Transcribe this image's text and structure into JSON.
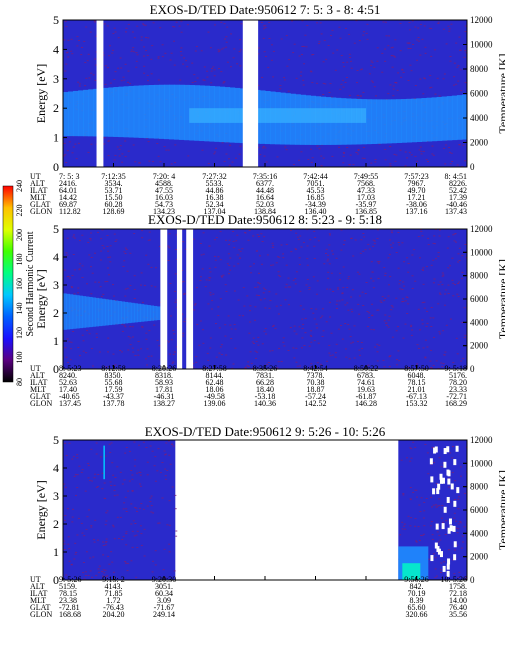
{
  "chart_data": [
    {
      "type": "heatmap",
      "title": "EXOS-D/TED   Date:950612  7: 5: 3 - 8: 4:51",
      "ylabel": "Energy [eV]",
      "y2label": "Temperature [K]",
      "ylim": [
        0,
        5
      ],
      "y2lim": [
        0,
        12000
      ],
      "yticks": [
        "0",
        "1",
        "2",
        "3",
        "4",
        "5"
      ],
      "y2ticks": [
        "0",
        "2000",
        "4000",
        "6000",
        "8000",
        "10000",
        "12000"
      ],
      "data_gaps": [
        [
          0.083,
          0.1
        ],
        [
          0.445,
          0.483
        ]
      ],
      "rows": [
        {
          "label": "UT",
          "values": [
            "7: 5: 3",
            "7:12:35",
            "7:20: 4",
            "7:27:32",
            "7:35:16",
            "7:42:44",
            "7:49:55",
            "7:57:23",
            "8: 4:51"
          ]
        },
        {
          "label": "ALT",
          "values": [
            "2416.",
            "3534.",
            "4588.",
            "5533.",
            "6377.",
            "7051.",
            "7568.",
            "7967.",
            "8226."
          ]
        },
        {
          "label": "ILAT",
          "values": [
            "64.01",
            "53.71",
            "47.55",
            "44.86",
            "44.48",
            "45.53",
            "47.33",
            "49.70",
            "52.42"
          ]
        },
        {
          "label": "MLT",
          "values": [
            "14.42",
            "15.50",
            "16.03",
            "16.38",
            "16.64",
            "16.85",
            "17.03",
            "17.21",
            "17.39"
          ]
        },
        {
          "label": "GLAT",
          "values": [
            "69.87",
            "60.28",
            "54.73",
            "52.34",
            "52.03",
            "-34.39",
            "-35.97",
            "-38.06",
            "-40.46"
          ]
        },
        {
          "label": "GLON",
          "values": [
            "112.82",
            "128.69",
            "134.23",
            "137.04",
            "138.84",
            "136.40",
            "136.85",
            "137.16",
            "137.43"
          ]
        }
      ]
    },
    {
      "type": "heatmap",
      "title": "EXOS-D/TED   Date:950612  8: 5:23 - 9: 5:18",
      "ylabel": "Energy [eV]",
      "y2label": "Temperature [K]",
      "ylim": [
        0,
        5
      ],
      "y2lim": [
        0,
        12000
      ],
      "yticks": [
        "0",
        "1",
        "2",
        "3",
        "4",
        "5"
      ],
      "y2ticks": [
        "0",
        "2000",
        "4000",
        "6000",
        "8000",
        "10000",
        "12000"
      ],
      "data_gaps": [
        [
          0.241,
          0.258
        ],
        [
          0.282,
          0.295
        ],
        [
          0.305,
          0.322
        ]
      ],
      "rows": [
        {
          "label": "UT",
          "values": [
            "8: 5:23",
            "8:12:58",
            "8:20:26",
            "8:27:58",
            "8:35:26",
            "8:42:54",
            "8:50:22",
            "8:57:50",
            "9: 5:18"
          ]
        },
        {
          "label": "ALT",
          "values": [
            "8240.",
            "8350.",
            "8318.",
            "8144.",
            "7831.",
            "7378.",
            "6783.",
            "6048.",
            "5176."
          ]
        },
        {
          "label": "ILAT",
          "values": [
            "52.63",
            "55.68",
            "58.93",
            "62.48",
            "66.28",
            "70.38",
            "74.61",
            "78.15",
            "78.20"
          ]
        },
        {
          "label": "MLT",
          "values": [
            "17.40",
            "17.59",
            "17.81",
            "18.06",
            "18.40",
            "18.87",
            "19.63",
            "21.01",
            "23.33"
          ]
        },
        {
          "label": "GLAT",
          "values": [
            "-40.65",
            "-43.37",
            "-46.31",
            "-49.58",
            "-53.18",
            "-57.24",
            "-61.87",
            "-67.13",
            "-72.71"
          ]
        },
        {
          "label": "GLON",
          "values": [
            "137.45",
            "137.78",
            "138.27",
            "139.06",
            "140.36",
            "142.52",
            "146.28",
            "153.32",
            "168.29"
          ]
        }
      ]
    },
    {
      "type": "heatmap",
      "title": "EXOS-D/TED   Date:950612  9: 5:26 - 10: 5:26",
      "ylabel": "Energy [eV]",
      "y2label": "Temperature [K]",
      "ylim": [
        0,
        5
      ],
      "y2lim": [
        0,
        12000
      ],
      "yticks": [
        "0",
        "1",
        "2",
        "3",
        "4",
        "5"
      ],
      "y2ticks": [
        "0",
        "2000",
        "4000",
        "6000",
        "8000",
        "10000",
        "12000"
      ],
      "data_spans": [
        [
          0,
          0.278
        ],
        [
          0.83,
          1
        ]
      ],
      "rows": [
        {
          "label": "UT",
          "values": [
            "9: 5:26",
            "9:13: 2",
            "9:20:30",
            "",
            "",
            "",
            "",
            "9:56:26",
            "10: 5:26"
          ]
        },
        {
          "label": "ALT",
          "values": [
            "5159.",
            "4143.",
            "3051.",
            "",
            "",
            "",
            "",
            "842.",
            "1758."
          ]
        },
        {
          "label": "ILAT",
          "values": [
            "78.15",
            "71.85",
            "60.34",
            "",
            "",
            "",
            "",
            "70.19",
            "72.18"
          ]
        },
        {
          "label": "MLT",
          "values": [
            "23.38",
            "1.72",
            "3.09",
            "",
            "",
            "",
            "",
            "8.39",
            "14.00"
          ]
        },
        {
          "label": "GLAT",
          "values": [
            "-72.81",
            "-76.43",
            "-71.67",
            "",
            "",
            "",
            "",
            "65.60",
            "76.40"
          ]
        },
        {
          "label": "GLON",
          "values": [
            "168.68",
            "204.20",
            "249.14",
            "",
            "",
            "",
            "",
            "320.66",
            "35.56"
          ]
        }
      ]
    }
  ],
  "colorbar": {
    "label": "Second Harmonic Current",
    "ticks": [
      "80",
      "100",
      "120",
      "140",
      "160",
      "180",
      "200",
      "220",
      "240"
    ],
    "range": [
      80,
      240
    ],
    "colors": [
      "#000000",
      "#5a0080",
      "#1a10ff",
      "#0060ff",
      "#00c8ff",
      "#00ff80",
      "#40ff00",
      "#e0ff00",
      "#ffc000",
      "#ff0000"
    ]
  },
  "colors": {
    "background_field": "#2a2acb",
    "noise": "#7a1e78",
    "band": "#1e8cff",
    "band_core": "#38b4ff",
    "gap": "#ffffff"
  }
}
